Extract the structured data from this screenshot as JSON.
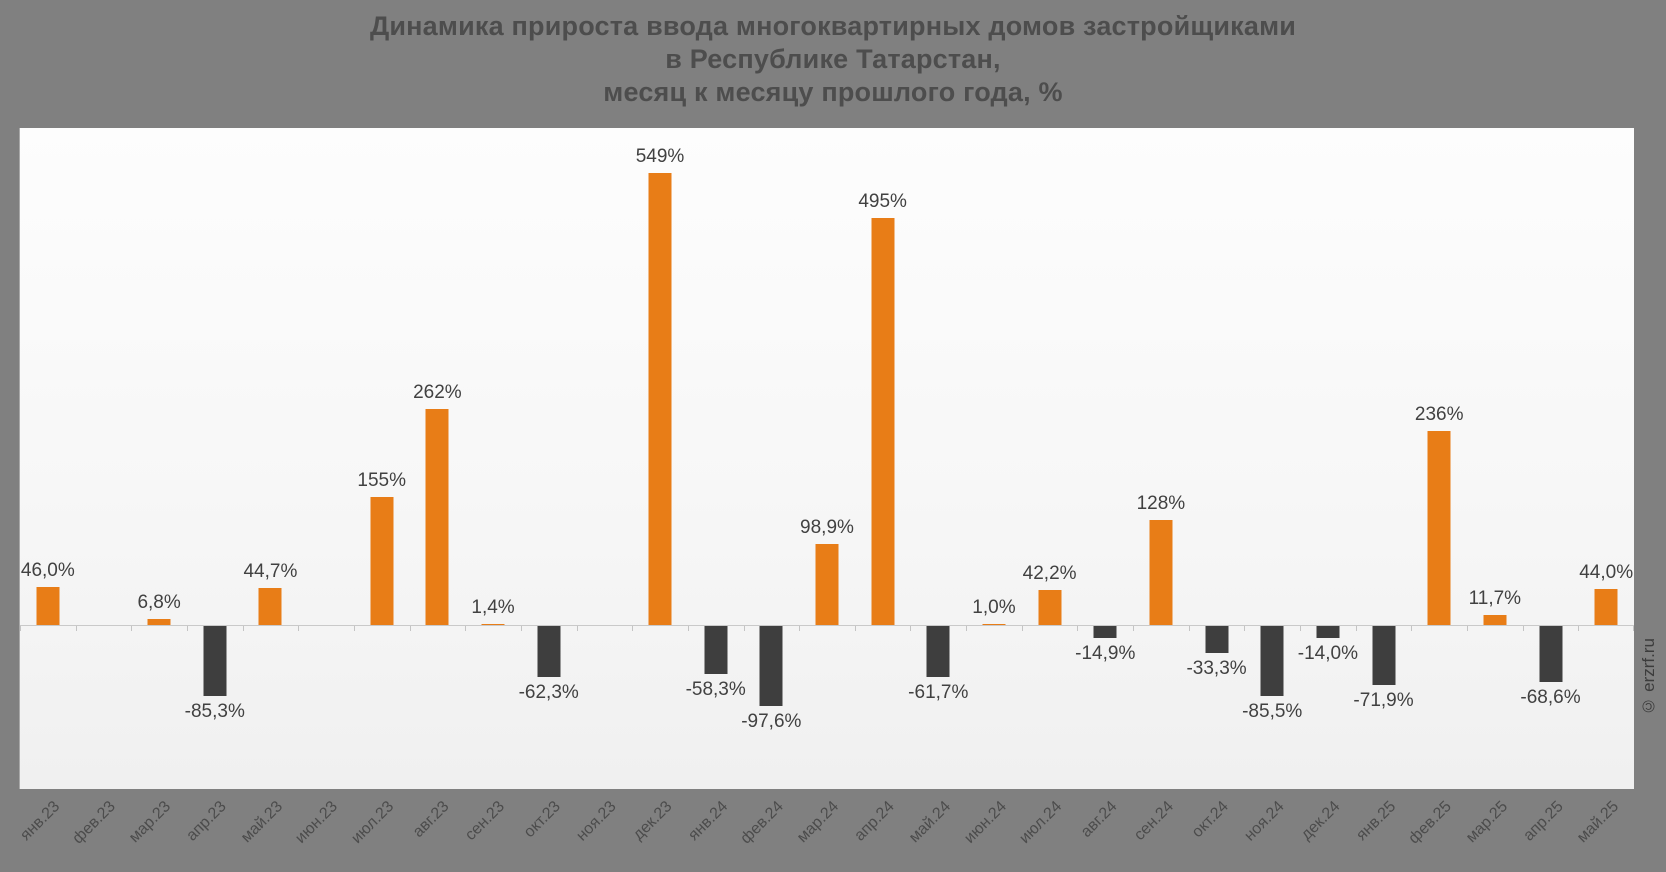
{
  "title": "Динамика прироста ввода многоквартирных домов застройщиками\nв Республике Татарстан,\nмесяц к месяцу прошлого года, %",
  "watermark": "© erzrf.ru",
  "chart_data": {
    "type": "bar",
    "title": "Динамика прироста ввода многоквартирных домов застройщиками\nв Республике Татарстан,\nмесяц к месяцу прошлого года, %",
    "xlabel": "",
    "ylabel": "",
    "ylim": [
      -200,
      605
    ],
    "grid": false,
    "legend": "none",
    "categories": [
      "янв.23",
      "фев.23",
      "мар.23",
      "апр.23",
      "май.23",
      "июн.23",
      "июл.23",
      "авг.23",
      "сен.23",
      "окт.23",
      "ноя.23",
      "дек.23",
      "янв.24",
      "фев.24",
      "мар.24",
      "апр.24",
      "май.24",
      "июн.24",
      "июл.24",
      "авг.24",
      "сен.24",
      "окт.24",
      "ноя.24",
      "дек.24",
      "янв.25",
      "фев.25",
      "мар.25",
      "апр.25",
      "май.25"
    ],
    "values": [
      46.0,
      null,
      6.8,
      -85.3,
      44.7,
      null,
      155,
      262,
      1.4,
      -62.3,
      null,
      549,
      -58.3,
      -97.6,
      98.9,
      495,
      -61.7,
      1.0,
      42.2,
      -14.9,
      128,
      -33.3,
      -85.5,
      -14.0,
      -71.9,
      236,
      11.7,
      -68.6,
      44.0
    ],
    "labels": [
      "46,0%",
      null,
      "6,8%",
      "-85,3%",
      "44,7%",
      null,
      "155%",
      "262%",
      "1,4%",
      "-62,3%",
      null,
      "549%",
      "-58,3%",
      "-97,6%",
      "98,9%",
      "495%",
      "-61,7%",
      "1,0%",
      "42,2%",
      "-14,9%",
      "128%",
      "-33,3%",
      "-85,5%",
      "-14,0%",
      "-71,9%",
      "236%",
      "11,7%",
      "-68,6%",
      "44,0%"
    ],
    "colors": {
      "positive": "#e87d17",
      "negative": "#3e3e3e"
    }
  }
}
